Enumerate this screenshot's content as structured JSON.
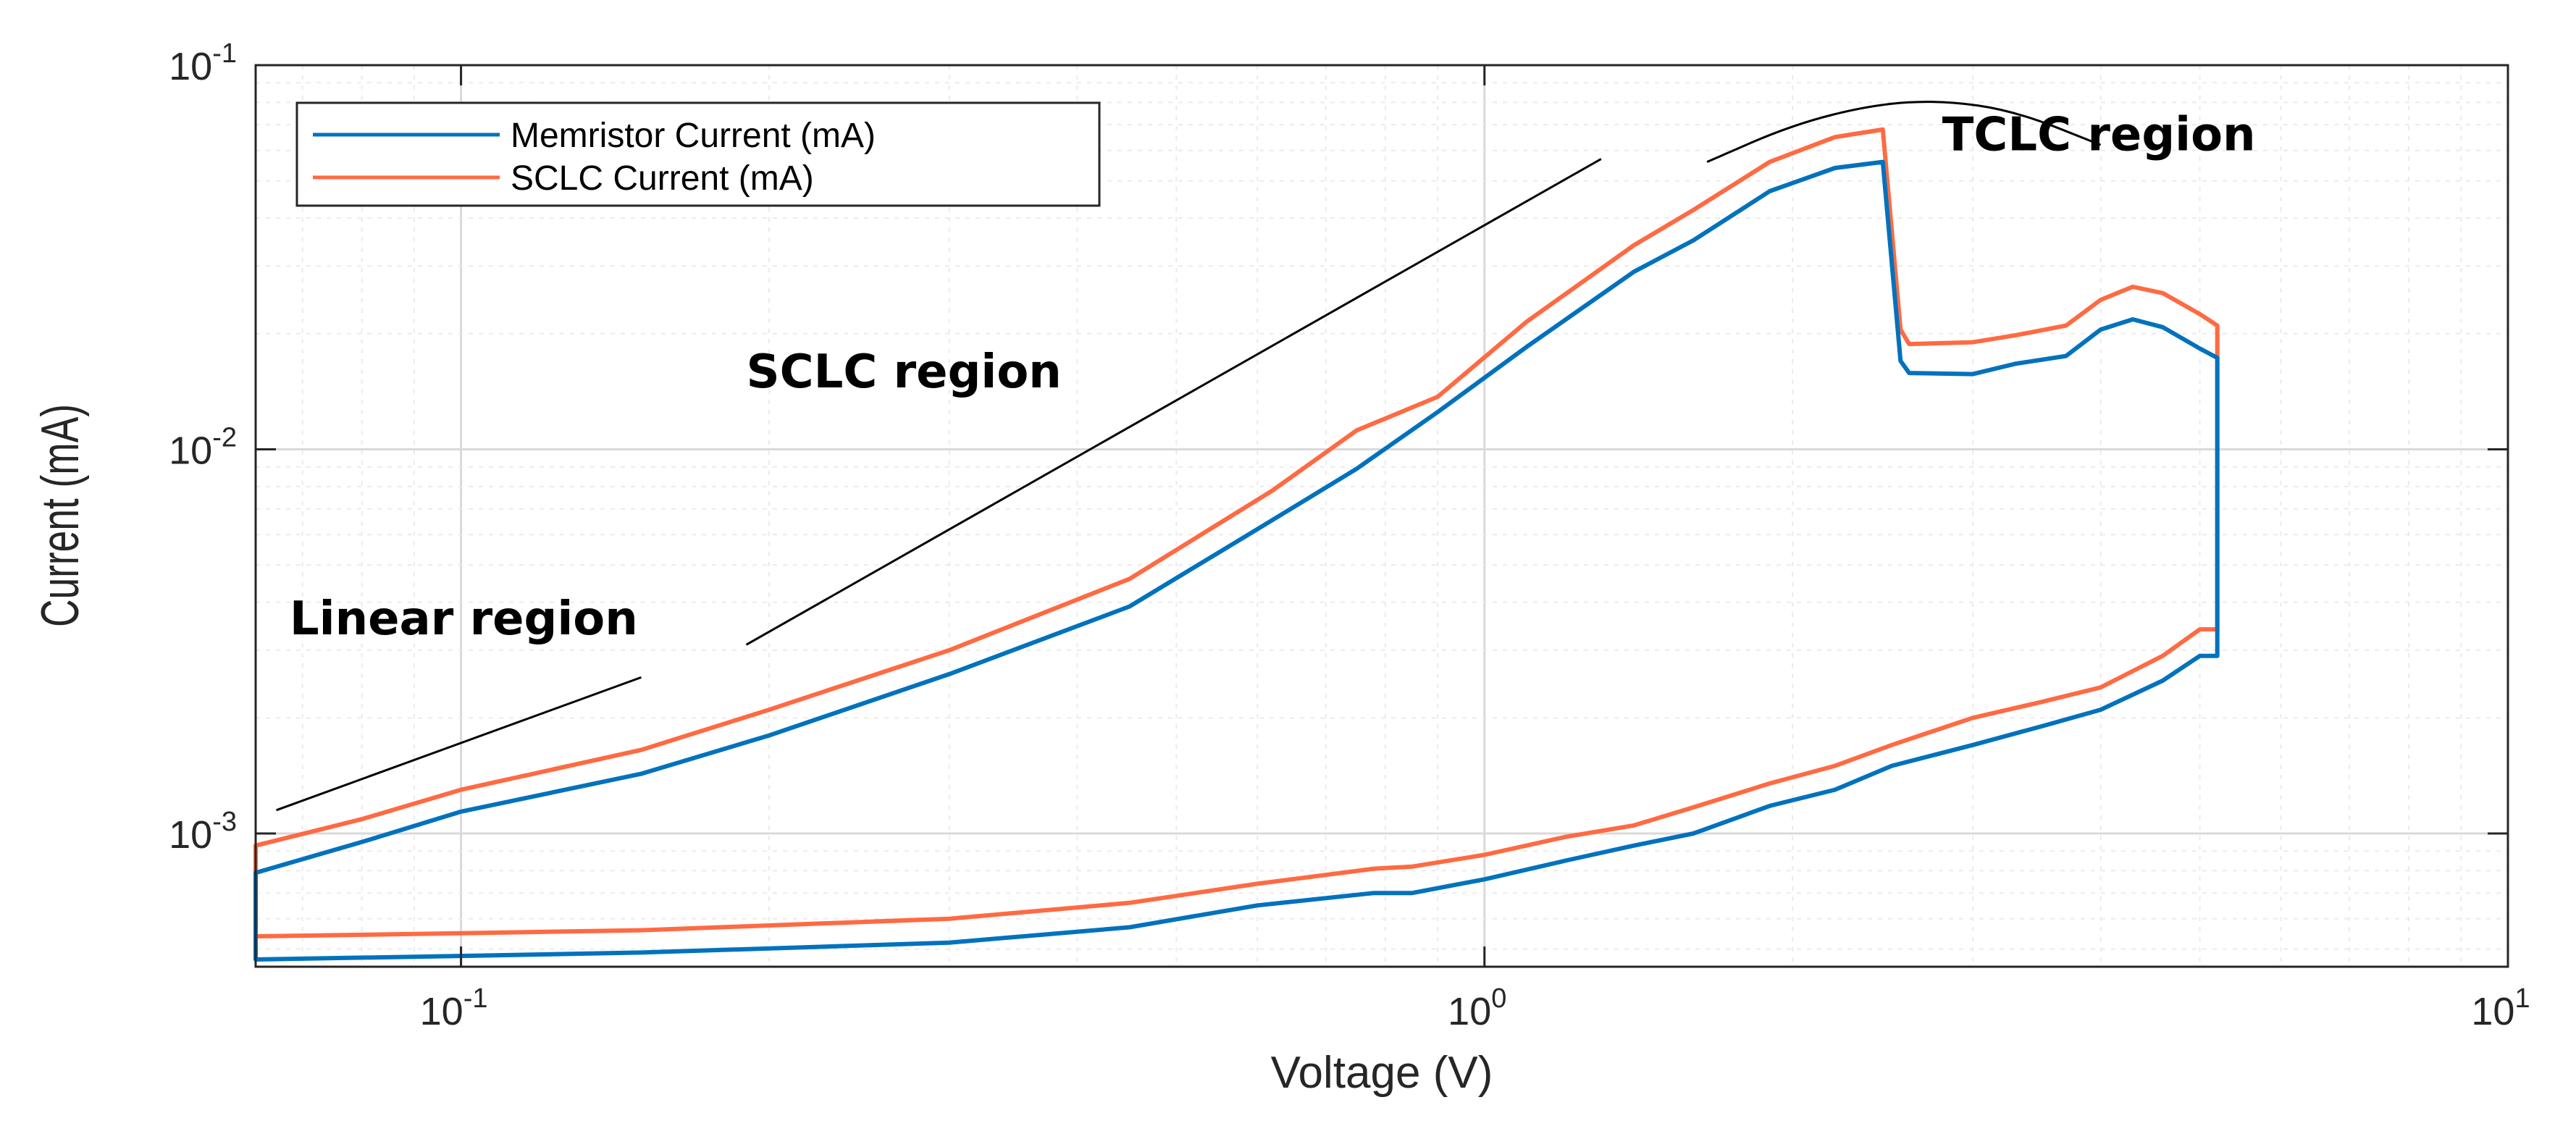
{
  "colors": {
    "memristor": "#0072BD",
    "sclc": "#FF6A42",
    "annotation": "#000000",
    "grid_major": "#d9d9d9",
    "grid_minor": "#ebebeb",
    "axes": "#262626"
  },
  "chart_data": {
    "type": "line",
    "title": "",
    "xlabel": "Voltage (V)",
    "ylabel": "Current (mA)",
    "xscale": "log",
    "yscale": "log",
    "xlim": [
      0.063,
      10
    ],
    "ylim": [
      0.00045,
      0.1
    ],
    "grid": true,
    "legend_position": "top-left",
    "x_ticks": [
      {
        "base": "10",
        "exp": "-1",
        "value": 0.1
      },
      {
        "base": "10",
        "exp": "0",
        "value": 1
      },
      {
        "base": "10",
        "exp": "1",
        "value": 10
      }
    ],
    "y_ticks": [
      {
        "base": "10",
        "exp": "-3",
        "value": 0.001
      },
      {
        "base": "10",
        "exp": "-2",
        "value": 0.01
      },
      {
        "base": "10",
        "exp": "-1",
        "value": 0.1
      }
    ],
    "series": [
      {
        "name": "Memristor Current (mA)",
        "color_key": "memristor",
        "points": [
          [
            0.063,
            0.00047
          ],
          [
            0.063,
            0.00079
          ],
          [
            0.08,
            0.00095
          ],
          [
            0.1,
            0.00114
          ],
          [
            0.15,
            0.00143
          ],
          [
            0.2,
            0.0018
          ],
          [
            0.3,
            0.0026
          ],
          [
            0.45,
            0.0039
          ],
          [
            0.6,
            0.0062
          ],
          [
            0.75,
            0.0089
          ],
          [
            0.9,
            0.0125
          ],
          [
            1.1,
            0.0185
          ],
          [
            1.4,
            0.029
          ],
          [
            1.6,
            0.035
          ],
          [
            1.9,
            0.047
          ],
          [
            2.2,
            0.054
          ],
          [
            2.45,
            0.056
          ],
          [
            2.55,
            0.017
          ],
          [
            2.6,
            0.0158
          ],
          [
            3.0,
            0.0157
          ],
          [
            3.3,
            0.0167
          ],
          [
            3.7,
            0.0175
          ],
          [
            4.0,
            0.0205
          ],
          [
            4.3,
            0.0218
          ],
          [
            4.6,
            0.0208
          ],
          [
            5.0,
            0.0183
          ],
          [
            5.2,
            0.0173
          ],
          [
            5.2,
            0.0029
          ],
          [
            5.0,
            0.0029
          ],
          [
            4.6,
            0.0025
          ],
          [
            4.0,
            0.0021
          ],
          [
            3.5,
            0.0019
          ],
          [
            3.0,
            0.0017
          ],
          [
            2.5,
            0.0015
          ],
          [
            2.2,
            0.0013
          ],
          [
            1.9,
            0.00118
          ],
          [
            1.6,
            0.001
          ],
          [
            1.4,
            0.00093
          ],
          [
            1.2,
            0.00085
          ],
          [
            1.0,
            0.00076
          ],
          [
            0.85,
            0.0007
          ],
          [
            0.78,
            0.0007
          ],
          [
            0.6,
            0.00065
          ],
          [
            0.45,
            0.00057
          ],
          [
            0.3,
            0.00052
          ],
          [
            0.15,
            0.00049
          ],
          [
            0.1,
            0.00048
          ],
          [
            0.063,
            0.00047
          ]
        ]
      },
      {
        "name": "SCLC Current (mA)",
        "color_key": "sclc",
        "points": [
          [
            0.063,
            0.00054
          ],
          [
            0.063,
            0.00093
          ],
          [
            0.08,
            0.00109
          ],
          [
            0.1,
            0.0013
          ],
          [
            0.15,
            0.00165
          ],
          [
            0.2,
            0.0021
          ],
          [
            0.3,
            0.003
          ],
          [
            0.45,
            0.0046
          ],
          [
            0.62,
            0.0078
          ],
          [
            0.75,
            0.0112
          ],
          [
            0.9,
            0.0137
          ],
          [
            1.1,
            0.0215
          ],
          [
            1.4,
            0.034
          ],
          [
            1.6,
            0.042
          ],
          [
            1.9,
            0.056
          ],
          [
            2.2,
            0.065
          ],
          [
            2.45,
            0.068
          ],
          [
            2.55,
            0.0205
          ],
          [
            2.6,
            0.0188
          ],
          [
            3.0,
            0.019
          ],
          [
            3.3,
            0.0198
          ],
          [
            3.7,
            0.021
          ],
          [
            4.0,
            0.0245
          ],
          [
            4.3,
            0.0265
          ],
          [
            4.6,
            0.0255
          ],
          [
            5.0,
            0.0225
          ],
          [
            5.2,
            0.021
          ],
          [
            5.2,
            0.0034
          ],
          [
            5.0,
            0.0034
          ],
          [
            4.6,
            0.0029
          ],
          [
            4.0,
            0.0024
          ],
          [
            3.5,
            0.0022
          ],
          [
            3.0,
            0.002
          ],
          [
            2.5,
            0.0017
          ],
          [
            2.2,
            0.0015
          ],
          [
            1.9,
            0.00135
          ],
          [
            1.6,
            0.00117
          ],
          [
            1.4,
            0.00105
          ],
          [
            1.2,
            0.00098
          ],
          [
            1.0,
            0.00088
          ],
          [
            0.85,
            0.00082
          ],
          [
            0.78,
            0.00081
          ],
          [
            0.6,
            0.00074
          ],
          [
            0.45,
            0.00066
          ],
          [
            0.3,
            0.0006
          ],
          [
            0.15,
            0.00056
          ],
          [
            0.1,
            0.00055
          ],
          [
            0.063,
            0.00054
          ]
        ]
      }
    ],
    "annotations": [
      {
        "text": "Linear region",
        "x": 0.068,
        "y": 0.0033
      },
      {
        "text": "SCLC region",
        "x": 0.19,
        "y": 0.0145
      },
      {
        "text": "TCLC region",
        "x": 2.8,
        "y": 0.06
      }
    ],
    "guide_lines": [
      {
        "points": [
          [
            0.066,
            0.00115
          ],
          [
            0.15,
            0.00255
          ]
        ]
      },
      {
        "points": [
          [
            0.19,
            0.0031
          ],
          [
            1.3,
            0.057
          ]
        ]
      },
      {
        "points": [
          [
            1.65,
            0.056
          ],
          [
            2.0,
            0.07
          ],
          [
            2.4,
            0.079
          ],
          [
            2.8,
            0.081
          ],
          [
            3.3,
            0.076
          ],
          [
            4.0,
            0.062
          ]
        ],
        "smooth": true
      }
    ]
  }
}
